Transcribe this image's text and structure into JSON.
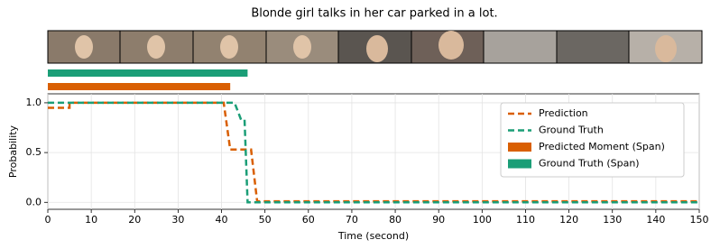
{
  "chart_data": {
    "type": "line",
    "title": "Blonde girl talks in her car parked in a lot.",
    "xlabel": "Time (second)",
    "ylabel": "Probability",
    "xlim": [
      0,
      150
    ],
    "ylim": [
      -0.07,
      1.09
    ],
    "xticks": [
      0,
      10,
      20,
      30,
      40,
      50,
      60,
      70,
      80,
      90,
      100,
      110,
      120,
      130,
      140,
      150
    ],
    "yticks": [
      {
        "value": 0,
        "label": "0.0"
      },
      0.5,
      {
        "value": 1,
        "label": "1.0"
      }
    ],
    "grid": true,
    "legend": "upper right",
    "series": [
      {
        "name": "Prediction",
        "color": "#d95f02",
        "x": [
          0,
          5,
          5,
          40.5,
          42,
          46.8,
          48.2,
          150
        ],
        "y": [
          0.95,
          0.95,
          1,
          1,
          0.53,
          0.53,
          0.01,
          0.01
        ]
      },
      {
        "name": "Ground Truth",
        "color": "#1b9e77",
        "x": [
          0,
          43,
          44.5,
          45.3,
          46,
          150
        ],
        "y": [
          1,
          1,
          0.83,
          0.83,
          0,
          0
        ]
      }
    ],
    "spans": [
      {
        "name": "Predicted Moment (Span)",
        "color": "#d95f02",
        "start": 0,
        "end": 42
      },
      {
        "name": "Ground Truth (Span)",
        "color": "#1b9e77",
        "start": 0,
        "end": 46
      }
    ]
  }
}
